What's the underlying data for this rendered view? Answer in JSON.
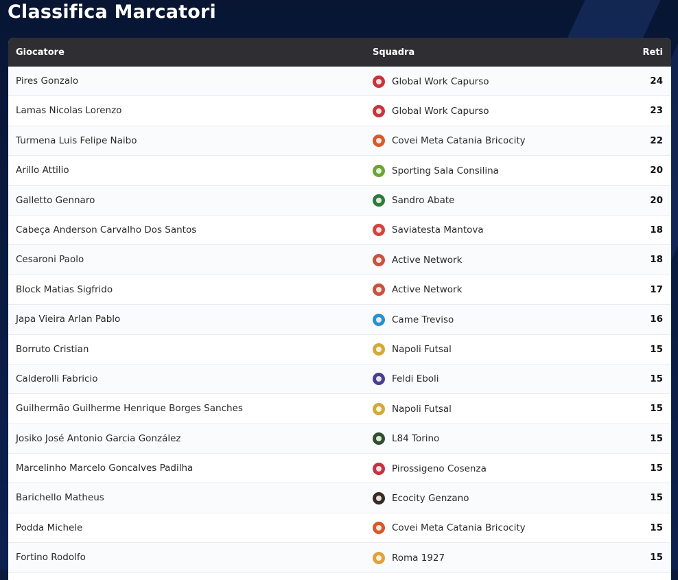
{
  "page": {
    "title": "Classifica Marcatori"
  },
  "table": {
    "headers": {
      "player": "Giocatore",
      "team": "Squadra",
      "goals": "Reti"
    },
    "rows": [
      {
        "player": "Pires Gonzalo",
        "team": "Global Work Capurso",
        "goals": "24",
        "logo_icon": "global-work-capurso-logo-icon",
        "logo_color": "#c8343c"
      },
      {
        "player": "Lamas Nicolas Lorenzo",
        "team": "Global Work Capurso",
        "goals": "23",
        "logo_icon": "global-work-capurso-logo-icon",
        "logo_color": "#c8343c"
      },
      {
        "player": "Turmena Luis Felipe Naibo",
        "team": "Covei Meta Catania Bricocity",
        "goals": "22",
        "logo_icon": "meta-catania-logo-icon",
        "logo_color": "#d9582b"
      },
      {
        "player": "Arillo Attilio",
        "team": "Sporting Sala Consilina",
        "goals": "20",
        "logo_icon": "sporting-sala-consilina-logo-icon",
        "logo_color": "#6aa533"
      },
      {
        "player": "Galletto Gennaro",
        "team": "Sandro Abate",
        "goals": "20",
        "logo_icon": "sandro-abate-logo-icon",
        "logo_color": "#2f7a3a"
      },
      {
        "player": "Cabeça Anderson Carvalho Dos Santos",
        "team": "Saviatesta Mantova",
        "goals": "18",
        "logo_icon": "saviatesta-mantova-logo-icon",
        "logo_color": "#d6433f"
      },
      {
        "player": "Cesaroni Paolo",
        "team": "Active Network",
        "goals": "18",
        "logo_icon": "active-network-logo-icon",
        "logo_color": "#c9523f"
      },
      {
        "player": "Block Matias Sigfrido",
        "team": "Active Network",
        "goals": "17",
        "logo_icon": "active-network-logo-icon",
        "logo_color": "#c9523f"
      },
      {
        "player": "Japa Vieira Arlan Pablo",
        "team": "Came Treviso",
        "goals": "16",
        "logo_icon": "came-treviso-logo-icon",
        "logo_color": "#2c8fcf"
      },
      {
        "player": "Borruto Cristian",
        "team": "Napoli Futsal",
        "goals": "15",
        "logo_icon": "napoli-futsal-logo-icon",
        "logo_color": "#d2a93a"
      },
      {
        "player": "Calderolli Fabricio",
        "team": "Feldi Eboli",
        "goals": "15",
        "logo_icon": "feldi-eboli-logo-icon",
        "logo_color": "#4a3f8f"
      },
      {
        "player": "Guilhermão Guilherme Henrique Borges Sanches",
        "team": "Napoli Futsal",
        "goals": "15",
        "logo_icon": "napoli-futsal-logo-icon",
        "logo_color": "#d2a93a"
      },
      {
        "player": "Josiko José Antonio Garcia González",
        "team": "L84 Torino",
        "goals": "15",
        "logo_icon": "l84-torino-logo-icon",
        "logo_color": "#2f4f2f"
      },
      {
        "player": "Marcelinho Marcelo Goncalves Padilha",
        "team": "Pirossigeno Cosenza",
        "goals": "15",
        "logo_icon": "pirossigeno-cosenza-logo-icon",
        "logo_color": "#c53343"
      },
      {
        "player": "Barichello Matheus",
        "team": "Ecocity Genzano",
        "goals": "15",
        "logo_icon": "ecocity-genzano-logo-icon",
        "logo_color": "#3a2a22"
      },
      {
        "player": "Podda Michele",
        "team": "Covei Meta Catania Bricocity",
        "goals": "15",
        "logo_icon": "meta-catania-logo-icon",
        "logo_color": "#d9582b"
      },
      {
        "player": "Fortino Rodolfo",
        "team": "Roma 1927",
        "goals": "15",
        "logo_icon": "roma-1927-logo-icon",
        "logo_color": "#e0a23a"
      }
    ]
  }
}
